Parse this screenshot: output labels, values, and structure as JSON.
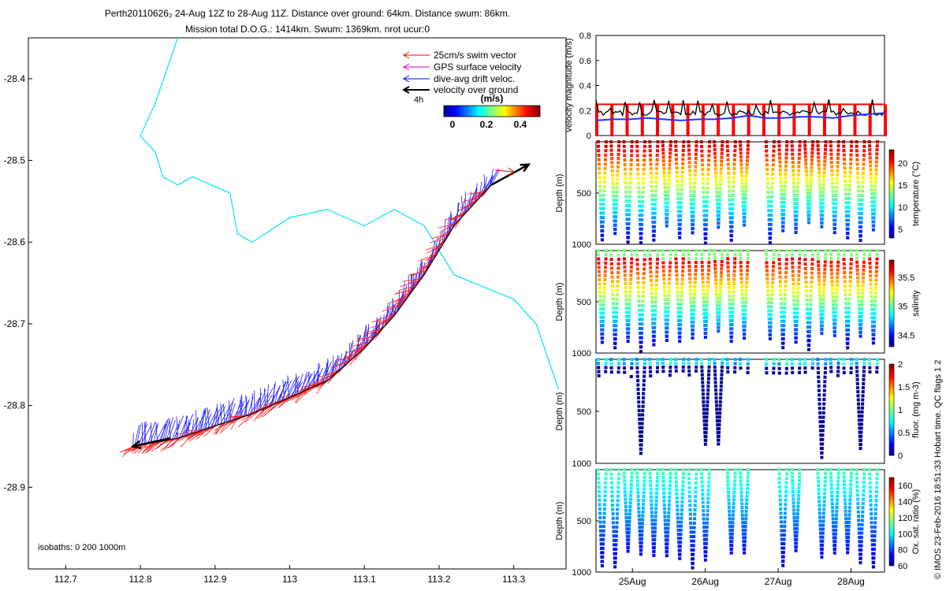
{
  "header": {
    "line1": "Perth20110626₂ 24-Aug 12Z to 28-Aug 11Z. Distance over ground: 64km. Distance swum: 86km.",
    "line2": "Mission total D.O.G.: 1414km. Swum: 1369km. nrot ucur:0"
  },
  "side_credit": "© IMOS 23-Feb-2016 18:51:33 Hobart time. QC flags 1 2",
  "chart_data": [
    {
      "type": "scatter",
      "name": "track-map",
      "x_ticks": [
        112.7,
        112.8,
        112.9,
        113,
        113.1,
        113.2,
        113.3
      ],
      "y_ticks": [
        -28.4,
        -28.5,
        -28.6,
        -28.7,
        -28.8,
        -28.9
      ],
      "xlim": [
        112.65,
        113.37
      ],
      "ylim": [
        -29.0,
        -28.35
      ],
      "isobaths_text": "isobaths: 0   200   1000m",
      "legend": [
        {
          "label": "25cm/s swim vector",
          "color": "#ff0000"
        },
        {
          "label": "GPS surface velocity",
          "color": "#cc00cc"
        },
        {
          "label": "dive-avg drift veloc.",
          "color": "#0000ff"
        },
        {
          "label": "velocity over ground",
          "color": "#000000"
        }
      ],
      "legend_note": "4h",
      "colorbar": {
        "title": "(m/s)",
        "ticks": [
          0,
          0.2,
          0.4
        ]
      },
      "track": [
        [
          112.79,
          -28.85
        ],
        [
          112.85,
          -28.84
        ],
        [
          112.9,
          -28.825
        ],
        [
          112.95,
          -28.81
        ],
        [
          113.0,
          -28.79
        ],
        [
          113.05,
          -28.77
        ],
        [
          113.1,
          -28.73
        ],
        [
          113.14,
          -28.69
        ],
        [
          113.18,
          -28.64
        ],
        [
          113.22,
          -28.58
        ],
        [
          113.27,
          -28.53
        ]
      ],
      "isobath_line": [
        [
          112.85,
          -28.35
        ],
        [
          112.82,
          -28.43
        ],
        [
          112.8,
          -28.47
        ],
        [
          112.82,
          -28.49
        ],
        [
          112.83,
          -28.52
        ],
        [
          112.85,
          -28.53
        ],
        [
          112.87,
          -28.52
        ],
        [
          112.92,
          -28.54
        ],
        [
          112.93,
          -28.59
        ],
        [
          112.95,
          -28.6
        ],
        [
          113.0,
          -28.57
        ],
        [
          113.05,
          -28.56
        ],
        [
          113.1,
          -28.58
        ],
        [
          113.14,
          -28.56
        ],
        [
          113.18,
          -28.58
        ],
        [
          113.22,
          -28.64
        ],
        [
          113.3,
          -28.67
        ],
        [
          113.33,
          -28.7
        ],
        [
          113.36,
          -28.78
        ]
      ],
      "vog_arrows": [
        {
          "from": [
            113.27,
            -28.53
          ],
          "to": [
            113.32,
            -28.505
          ]
        },
        {
          "from": [
            112.84,
            -28.84
          ],
          "to": [
            112.79,
            -28.85
          ]
        }
      ]
    },
    {
      "type": "line",
      "name": "velocity-panel",
      "ylabel": "velocity magnitude (m/s)",
      "yticks": [
        0,
        0.2,
        0.4,
        0.6,
        0.8
      ],
      "ylim": [
        0,
        0.8
      ],
      "red_level": 0.25,
      "black_mean": 0.18,
      "blue": [
        0.12,
        0.13,
        0.13,
        0.14,
        0.13,
        0.12,
        0.13,
        0.13,
        0.14,
        0.16,
        0.14,
        0.14,
        0.15,
        0.15,
        0.14,
        0.16,
        0.17,
        0.18
      ]
    },
    {
      "type": "heatmap",
      "name": "temperature-panel",
      "ylabel": "Depth (m)",
      "yticks": [
        500,
        1000
      ],
      "ylim": [
        0,
        1000
      ],
      "cbar_label": "temperature (°C)",
      "cbar_ticks": [
        5,
        10,
        15,
        20
      ],
      "cbar_range": [
        3,
        23
      ]
    },
    {
      "type": "heatmap",
      "name": "salinity-panel",
      "ylabel": "Depth (m)",
      "yticks": [
        500,
        1000
      ],
      "ylim": [
        0,
        1000
      ],
      "cbar_label": "salinity",
      "cbar_ticks": [
        34.5,
        35,
        35.5
      ],
      "cbar_range": [
        34.3,
        35.8
      ]
    },
    {
      "type": "heatmap",
      "name": "fluor-panel",
      "ylabel": "Depth (m)",
      "yticks": [
        500,
        1000
      ],
      "ylim": [
        0,
        1000
      ],
      "cbar_label": "fluor. (mg m-3)",
      "cbar_ticks": [
        0,
        0.5,
        1,
        1.5,
        2
      ],
      "cbar_range": [
        0,
        2
      ]
    },
    {
      "type": "heatmap",
      "name": "oxygen-panel",
      "ylabel": "Depth (m)",
      "yticks": [
        500,
        1000
      ],
      "ylim": [
        0,
        1000
      ],
      "cbar_label": "Ox. sat. ratio (%)",
      "cbar_ticks": [
        60,
        80,
        100,
        120,
        140,
        160
      ],
      "cbar_range": [
        60,
        170
      ],
      "x_ticks": [
        "25Aug",
        "26Aug",
        "27Aug",
        "28Aug"
      ]
    }
  ]
}
